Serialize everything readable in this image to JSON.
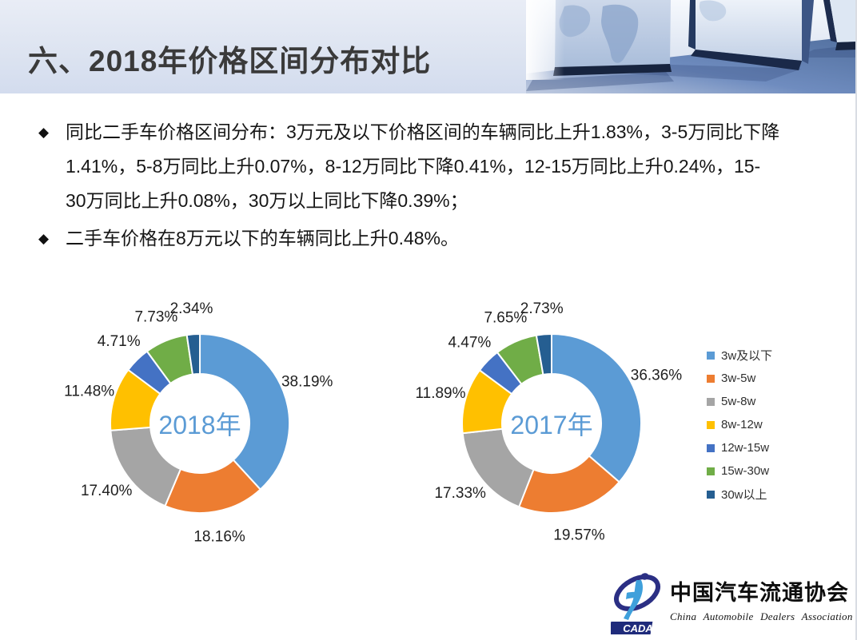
{
  "header": {
    "title": "六、2018年价格区间分布对比"
  },
  "bullets": [
    {
      "marker": "◆",
      "lines": [
        "同比二手车价格区间分布：3万元及以下价格区间的车辆同比上升1.83%，3-5万同比下降",
        "1.41%，5-8万同比上升0.07%，8-12万同比下降0.41%，12-15万同比上升0.24%，15-",
        "30万同比上升0.08%，30万以上同比下降0.39%；"
      ]
    },
    {
      "marker": "◆",
      "lines": [
        "二手车价格在8万元以下的车辆同比上升0.48%。"
      ]
    }
  ],
  "chart_data": [
    {
      "type": "pie",
      "donut": true,
      "title": "2018年",
      "center_label": "2018年",
      "center_label_color": "#5B9BD5",
      "categories": [
        "3w及以下",
        "3w-5w",
        "5w-8w",
        "8w-12w",
        "12w-15w",
        "15w-30w",
        "30w以上"
      ],
      "values": [
        38.19,
        18.16,
        17.4,
        11.48,
        4.71,
        7.73,
        2.34
      ],
      "labels": [
        "38.19%",
        "18.16%",
        "17.40%",
        "11.48%",
        "4.71%",
        "7.73%",
        "2.34%"
      ],
      "colors": [
        "#5B9BD5",
        "#ED7D31",
        "#A5A5A5",
        "#FFC000",
        "#4472C4",
        "#70AD47",
        "#255E91"
      ],
      "start_angle_deg": 0,
      "direction": "clockwise",
      "legend_position": "right"
    },
    {
      "type": "pie",
      "donut": true,
      "title": "2017年",
      "center_label": "2017年",
      "center_label_color": "#5B9BD5",
      "categories": [
        "3w及以下",
        "3w-5w",
        "5w-8w",
        "8w-12w",
        "12w-15w",
        "15w-30w",
        "30w以上"
      ],
      "values": [
        36.36,
        19.57,
        17.33,
        11.89,
        4.47,
        7.65,
        2.73
      ],
      "labels": [
        "36.36%",
        "19.57%",
        "17.33%",
        "11.89%",
        "4.47%",
        "7.65%",
        "2.73%"
      ],
      "colors": [
        "#5B9BD5",
        "#ED7D31",
        "#A5A5A5",
        "#FFC000",
        "#4472C4",
        "#70AD47",
        "#255E91"
      ],
      "start_angle_deg": 0,
      "direction": "clockwise",
      "legend_position": "right"
    }
  ],
  "legend": {
    "items": [
      {
        "label": "3w及以下",
        "color": "#5B9BD5"
      },
      {
        "label": "3w-5w",
        "color": "#ED7D31"
      },
      {
        "label": "5w-8w",
        "color": "#A5A5A5"
      },
      {
        "label": "8w-12w",
        "color": "#FFC000"
      },
      {
        "label": "12w-15w",
        "color": "#4472C4"
      },
      {
        "label": "15w-30w",
        "color": "#70AD47"
      },
      {
        "label": "30w以上",
        "color": "#255E91"
      }
    ]
  },
  "logo": {
    "abbr": "CADA",
    "name_cn": "中国汽车流通协会",
    "name_en": "China Automobile Dealers Association"
  }
}
